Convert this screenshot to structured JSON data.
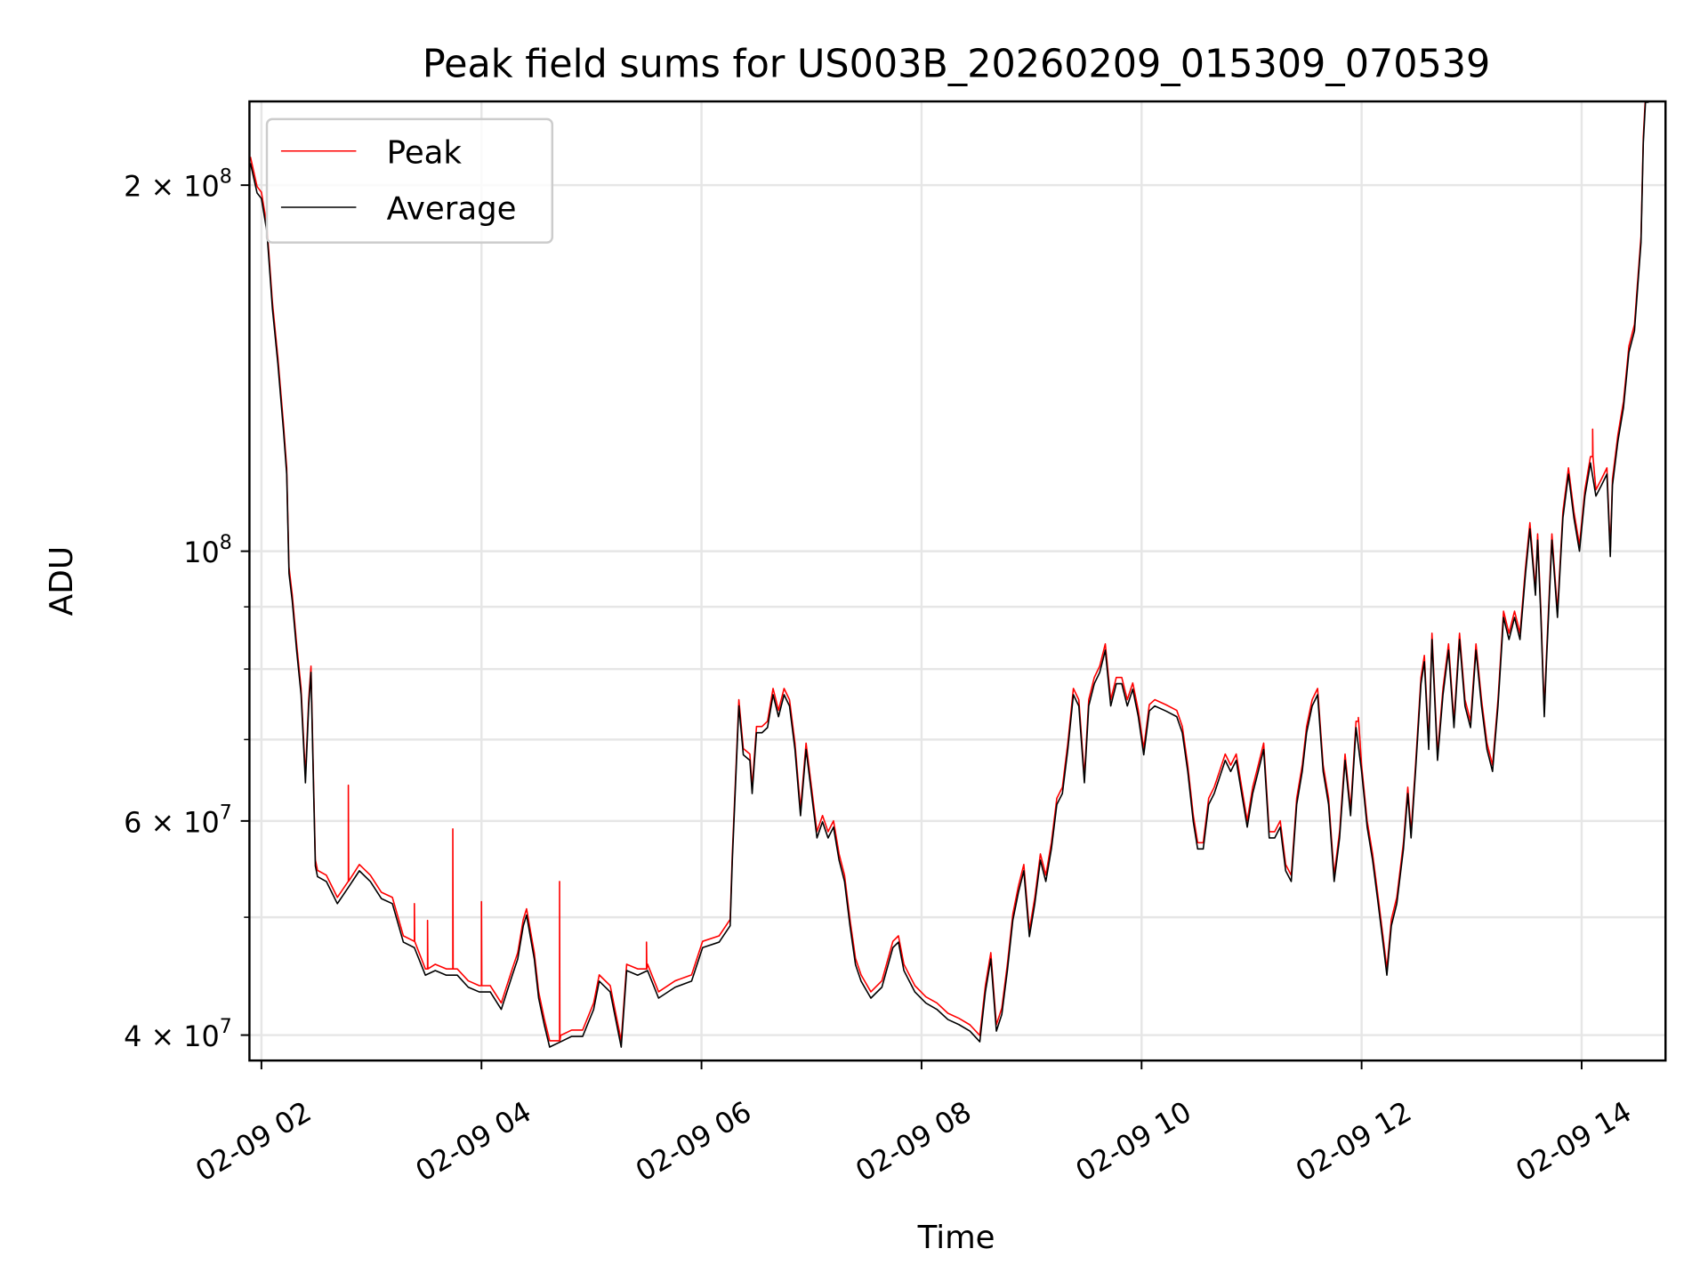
{
  "chart_data": {
    "type": "line",
    "title": "Peak field sums for US003B_20260209_015309_070539",
    "xlabel": "Time",
    "ylabel": "ADU",
    "yscale": "log",
    "ylim": [
      38100000,
      234000000
    ],
    "xlim_hours": [
      1.89,
      14.76
    ],
    "grid": true,
    "legend_placement": "top-left",
    "x_unit": "hours since 2026-02-09 00:00",
    "value_scale": 10000000,
    "x_ticks": [
      {
        "value": 2,
        "label": "02-09 02"
      },
      {
        "value": 4,
        "label": "02-09 04"
      },
      {
        "value": 6,
        "label": "02-09 06"
      },
      {
        "value": 8,
        "label": "02-09 08"
      },
      {
        "value": 10,
        "label": "02-09 10"
      },
      {
        "value": 12,
        "label": "02-09 12"
      },
      {
        "value": 14,
        "label": "02-09 14"
      }
    ],
    "y_ticks": [
      {
        "value": 20,
        "mantissa": "2 × 10",
        "exp": "8"
      },
      {
        "value": 10,
        "mantissa": "10",
        "exp": "8"
      },
      {
        "value": 6,
        "mantissa": "6 × 10",
        "exp": "7"
      },
      {
        "value": 4,
        "mantissa": "4 × 10",
        "exp": "7"
      }
    ],
    "y_minor_ticks": [
      5,
      7,
      8,
      9
    ],
    "series": [
      {
        "name": "Peak",
        "color": "#ff0000",
        "ratio_to_average": 1.012,
        "spikes": [
          [
            2.79,
            6.42
          ],
          [
            3.39,
            5.13
          ],
          [
            3.51,
            4.97
          ],
          [
            3.74,
            5.91
          ],
          [
            4.0,
            5.15
          ],
          [
            4.71,
            5.35
          ],
          [
            5.5,
            4.77
          ],
          [
            14.1,
            12.6
          ],
          [
            11.97,
            7.3
          ]
        ]
      },
      {
        "name": "Average",
        "color": "#000000",
        "points": [
          [
            1.9,
            20.85
          ],
          [
            1.96,
            19.71
          ],
          [
            2.0,
            19.5
          ],
          [
            2.05,
            18.32
          ],
          [
            2.1,
            15.83
          ],
          [
            2.15,
            14.26
          ],
          [
            2.2,
            12.58
          ],
          [
            2.23,
            11.57
          ],
          [
            2.25,
            9.59
          ],
          [
            2.28,
            9.1
          ],
          [
            2.32,
            8.29
          ],
          [
            2.36,
            7.62
          ],
          [
            2.4,
            6.45
          ],
          [
            2.43,
            7.46
          ],
          [
            2.45,
            7.95
          ],
          [
            2.47,
            6.59
          ],
          [
            2.49,
            5.51
          ],
          [
            2.51,
            5.4
          ],
          [
            2.59,
            5.35
          ],
          [
            2.69,
            5.13
          ],
          [
            2.79,
            5.29
          ],
          [
            2.89,
            5.46
          ],
          [
            2.99,
            5.35
          ],
          [
            3.09,
            5.18
          ],
          [
            3.19,
            5.13
          ],
          [
            3.29,
            4.77
          ],
          [
            3.39,
            4.72
          ],
          [
            3.49,
            4.48
          ],
          [
            3.58,
            4.52
          ],
          [
            3.68,
            4.48
          ],
          [
            3.78,
            4.48
          ],
          [
            3.88,
            4.38
          ],
          [
            3.98,
            4.34
          ],
          [
            4.08,
            4.34
          ],
          [
            4.18,
            4.2
          ],
          [
            4.28,
            4.48
          ],
          [
            4.33,
            4.62
          ],
          [
            4.38,
            4.92
          ],
          [
            4.41,
            5.02
          ],
          [
            4.48,
            4.62
          ],
          [
            4.52,
            4.29
          ],
          [
            4.57,
            4.08
          ],
          [
            4.62,
            3.91
          ],
          [
            4.72,
            3.95
          ],
          [
            4.82,
            3.99
          ],
          [
            4.92,
            3.99
          ],
          [
            5.02,
            4.2
          ],
          [
            5.07,
            4.43
          ],
          [
            5.17,
            4.34
          ],
          [
            5.27,
            3.91
          ],
          [
            5.32,
            4.52
          ],
          [
            5.42,
            4.48
          ],
          [
            5.51,
            4.52
          ],
          [
            5.61,
            4.29
          ],
          [
            5.76,
            4.38
          ],
          [
            5.91,
            4.43
          ],
          [
            6.01,
            4.72
          ],
          [
            6.16,
            4.77
          ],
          [
            6.26,
            4.92
          ],
          [
            6.28,
            5.57
          ],
          [
            6.34,
            7.46
          ],
          [
            6.38,
            6.8
          ],
          [
            6.44,
            6.73
          ],
          [
            6.46,
            6.32
          ],
          [
            6.5,
            7.09
          ],
          [
            6.55,
            7.09
          ],
          [
            6.6,
            7.16
          ],
          [
            6.65,
            7.62
          ],
          [
            6.7,
            7.31
          ],
          [
            6.75,
            7.62
          ],
          [
            6.8,
            7.46
          ],
          [
            6.85,
            6.87
          ],
          [
            6.9,
            6.06
          ],
          [
            6.95,
            6.87
          ],
          [
            7.0,
            6.32
          ],
          [
            7.05,
            5.81
          ],
          [
            7.1,
            5.99
          ],
          [
            7.15,
            5.81
          ],
          [
            7.2,
            5.93
          ],
          [
            7.25,
            5.57
          ],
          [
            7.3,
            5.35
          ],
          [
            7.35,
            4.92
          ],
          [
            7.4,
            4.57
          ],
          [
            7.45,
            4.43
          ],
          [
            7.54,
            4.29
          ],
          [
            7.64,
            4.38
          ],
          [
            7.74,
            4.72
          ],
          [
            7.79,
            4.77
          ],
          [
            7.84,
            4.52
          ],
          [
            7.94,
            4.34
          ],
          [
            8.04,
            4.25
          ],
          [
            8.14,
            4.2
          ],
          [
            8.24,
            4.12
          ],
          [
            8.34,
            4.08
          ],
          [
            8.44,
            4.03
          ],
          [
            8.53,
            3.95
          ],
          [
            8.58,
            4.34
          ],
          [
            8.63,
            4.62
          ],
          [
            8.68,
            4.03
          ],
          [
            8.73,
            4.16
          ],
          [
            8.78,
            4.52
          ],
          [
            8.83,
            4.97
          ],
          [
            8.88,
            5.24
          ],
          [
            8.93,
            5.46
          ],
          [
            8.98,
            4.82
          ],
          [
            9.03,
            5.13
          ],
          [
            9.08,
            5.57
          ],
          [
            9.13,
            5.35
          ],
          [
            9.18,
            5.69
          ],
          [
            9.23,
            6.19
          ],
          [
            9.28,
            6.32
          ],
          [
            9.33,
            6.87
          ],
          [
            9.38,
            7.62
          ],
          [
            9.43,
            7.46
          ],
          [
            9.48,
            6.45
          ],
          [
            9.52,
            7.46
          ],
          [
            9.57,
            7.78
          ],
          [
            9.62,
            7.95
          ],
          [
            9.67,
            8.29
          ],
          [
            9.72,
            7.46
          ],
          [
            9.77,
            7.78
          ],
          [
            9.82,
            7.78
          ],
          [
            9.87,
            7.46
          ],
          [
            9.92,
            7.7
          ],
          [
            9.97,
            7.31
          ],
          [
            10.02,
            6.8
          ],
          [
            10.07,
            7.39
          ],
          [
            10.12,
            7.46
          ],
          [
            10.22,
            7.39
          ],
          [
            10.32,
            7.31
          ],
          [
            10.37,
            7.09
          ],
          [
            10.42,
            6.59
          ],
          [
            10.47,
            5.99
          ],
          [
            10.51,
            5.69
          ],
          [
            10.56,
            5.69
          ],
          [
            10.61,
            6.19
          ],
          [
            10.66,
            6.32
          ],
          [
            10.71,
            6.52
          ],
          [
            10.76,
            6.73
          ],
          [
            10.81,
            6.59
          ],
          [
            10.86,
            6.73
          ],
          [
            10.91,
            6.32
          ],
          [
            10.96,
            5.93
          ],
          [
            11.01,
            6.32
          ],
          [
            11.06,
            6.59
          ],
          [
            11.11,
            6.87
          ],
          [
            11.16,
            5.81
          ],
          [
            11.21,
            5.81
          ],
          [
            11.26,
            5.93
          ],
          [
            11.31,
            5.46
          ],
          [
            11.36,
            5.35
          ],
          [
            11.41,
            6.19
          ],
          [
            11.46,
            6.59
          ],
          [
            11.5,
            7.09
          ],
          [
            11.55,
            7.46
          ],
          [
            11.6,
            7.62
          ],
          [
            11.65,
            6.59
          ],
          [
            11.7,
            6.19
          ],
          [
            11.75,
            5.35
          ],
          [
            11.8,
            5.81
          ],
          [
            11.85,
            6.73
          ],
          [
            11.9,
            6.06
          ],
          [
            11.95,
            7.16
          ],
          [
            12.0,
            6.59
          ],
          [
            12.05,
            5.93
          ],
          [
            12.1,
            5.57
          ],
          [
            12.15,
            5.13
          ],
          [
            12.2,
            4.72
          ],
          [
            12.23,
            4.48
          ],
          [
            12.27,
            4.92
          ],
          [
            12.32,
            5.13
          ],
          [
            12.38,
            5.69
          ],
          [
            12.42,
            6.32
          ],
          [
            12.45,
            5.81
          ],
          [
            12.49,
            6.59
          ],
          [
            12.54,
            7.78
          ],
          [
            12.57,
            8.11
          ],
          [
            12.61,
            6.87
          ],
          [
            12.64,
            8.46
          ],
          [
            12.69,
            6.73
          ],
          [
            12.74,
            7.62
          ],
          [
            12.79,
            8.29
          ],
          [
            12.84,
            7.16
          ],
          [
            12.89,
            8.46
          ],
          [
            12.94,
            7.46
          ],
          [
            12.99,
            7.16
          ],
          [
            13.04,
            8.29
          ],
          [
            13.09,
            7.46
          ],
          [
            13.14,
            6.87
          ],
          [
            13.19,
            6.59
          ],
          [
            13.24,
            7.46
          ],
          [
            13.29,
            8.82
          ],
          [
            13.34,
            8.46
          ],
          [
            13.39,
            8.82
          ],
          [
            13.44,
            8.46
          ],
          [
            13.49,
            9.59
          ],
          [
            13.53,
            10.43
          ],
          [
            13.58,
            9.2
          ],
          [
            13.6,
            10.21
          ],
          [
            13.63,
            8.82
          ],
          [
            13.66,
            7.31
          ],
          [
            13.68,
            8.11
          ],
          [
            13.73,
            10.21
          ],
          [
            13.78,
            8.82
          ],
          [
            13.83,
            10.65
          ],
          [
            13.88,
            11.57
          ],
          [
            13.93,
            10.65
          ],
          [
            13.98,
            10.0
          ],
          [
            14.03,
            11.1
          ],
          [
            14.08,
            11.82
          ],
          [
            14.13,
            11.1
          ],
          [
            14.18,
            11.33
          ],
          [
            14.23,
            11.57
          ],
          [
            14.26,
            9.9
          ],
          [
            14.28,
            11.33
          ],
          [
            14.33,
            12.32
          ],
          [
            14.38,
            13.12
          ],
          [
            14.43,
            14.57
          ],
          [
            14.48,
            15.18
          ],
          [
            14.51,
            16.51
          ],
          [
            14.54,
            17.94
          ],
          [
            14.56,
            21.65
          ],
          [
            14.58,
            23.4
          ],
          [
            14.61,
            23.4
          ]
        ]
      }
    ]
  }
}
